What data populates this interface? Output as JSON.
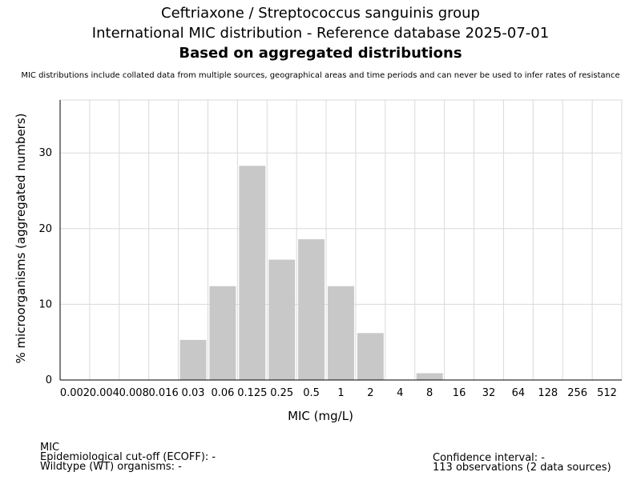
{
  "titles": {
    "line1": "Ceftriaxone / Streptococcus sanguinis group",
    "line2": "International MIC distribution - Reference database 2025-07-01",
    "line3": "Based on aggregated distributions",
    "subtitle": "MIC distributions include collated data from multiple sources, geographical areas and time periods and can never be used to infer rates of resistance"
  },
  "footer": {
    "left": [
      "MIC",
      "Epidemiological cut-off (ECOFF): -",
      "Wildtype (WT) organisms:  -"
    ],
    "right": [
      "Confidence interval: -",
      "113 observations (2 data sources)"
    ]
  },
  "chart_data": {
    "type": "bar",
    "xlabel": "MIC (mg/L)",
    "ylabel": "% microorganisms (aggregated numbers)",
    "categories": [
      "0.002",
      "0.004",
      "0.008",
      "0.016",
      "0.03",
      "0.06",
      "0.125",
      "0.25",
      "0.5",
      "1",
      "2",
      "4",
      "8",
      "16",
      "32",
      "64",
      "128",
      "256",
      "512"
    ],
    "values": [
      0,
      0,
      0,
      0,
      5.3,
      12.4,
      28.3,
      15.9,
      18.6,
      12.4,
      6.2,
      0,
      0.9,
      0,
      0,
      0,
      0,
      0,
      0
    ],
    "ylim": [
      0,
      37
    ],
    "yticks": [
      0,
      10,
      20,
      30
    ],
    "grid": true,
    "bar_color": "#c8c8c8",
    "grid_color": "#d9d9d9"
  }
}
